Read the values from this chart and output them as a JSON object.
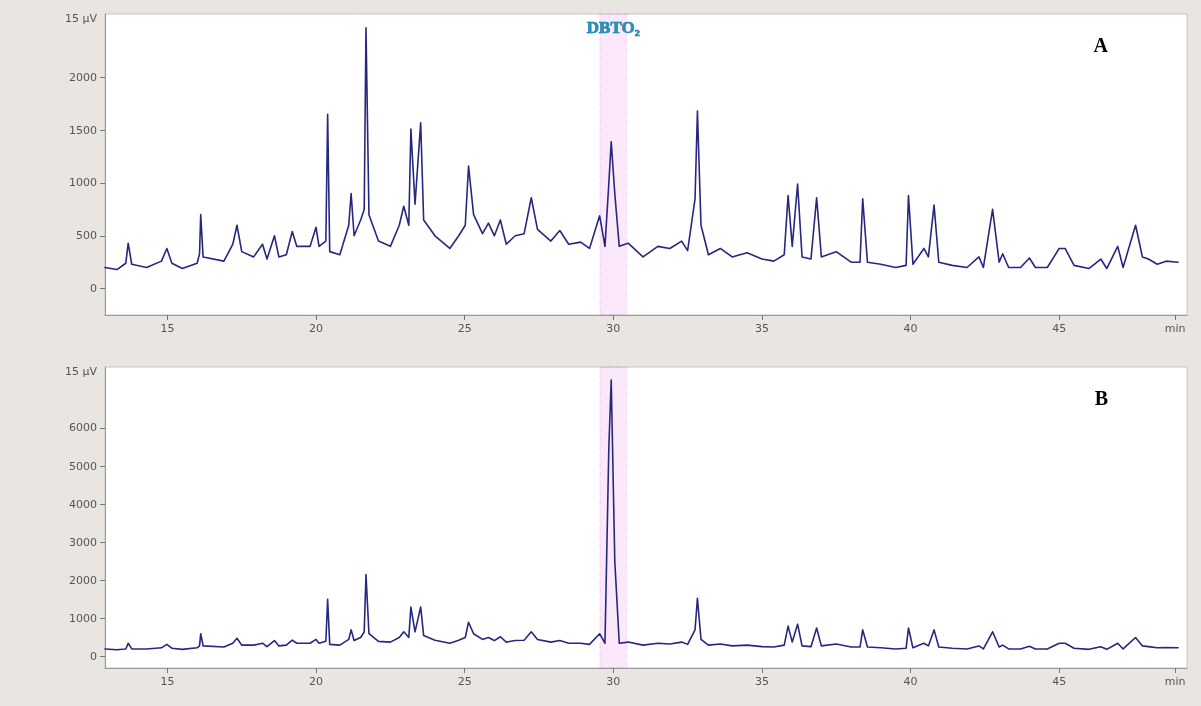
{
  "chart_data": [
    {
      "type": "line",
      "title": "A",
      "x": [
        12.9,
        13.3,
        13.6,
        13.68,
        13.8,
        14.3,
        14.8,
        14.98,
        15.15,
        15.5,
        16.0,
        16.08,
        16.12,
        16.2,
        16.9,
        17.2,
        17.34,
        17.5,
        17.9,
        18.2,
        18.35,
        18.6,
        18.75,
        19.0,
        19.2,
        19.35,
        19.8,
        20.0,
        20.1,
        20.33,
        20.39,
        20.46,
        20.8,
        21.1,
        21.18,
        21.28,
        21.5,
        21.62,
        21.68,
        21.78,
        22.1,
        22.5,
        22.8,
        22.95,
        23.12,
        23.19,
        23.33,
        23.52,
        23.62,
        24.0,
        24.5,
        24.8,
        25.02,
        25.13,
        25.3,
        25.6,
        25.8,
        26.0,
        26.2,
        26.4,
        26.7,
        27.0,
        27.24,
        27.45,
        27.9,
        28.2,
        28.5,
        28.9,
        29.2,
        29.54,
        29.72,
        29.85,
        29.93,
        30.05,
        30.2,
        30.5,
        31.0,
        31.5,
        31.9,
        32.3,
        32.5,
        32.75,
        32.83,
        32.95,
        33.2,
        33.6,
        34.0,
        34.5,
        35.0,
        35.4,
        35.75,
        35.88,
        36.02,
        36.2,
        36.35,
        36.65,
        36.84,
        37.0,
        37.5,
        38.0,
        38.3,
        38.39,
        38.55,
        39.0,
        39.5,
        39.85,
        39.93,
        40.08,
        40.45,
        40.6,
        40.79,
        40.95,
        41.4,
        41.9,
        42.3,
        42.45,
        42.76,
        42.98,
        43.1,
        43.3,
        43.7,
        44.0,
        44.2,
        44.6,
        45.0,
        45.2,
        45.5,
        46.0,
        46.4,
        46.6,
        46.97,
        47.15,
        47.57,
        47.8,
        48.0,
        48.3,
        48.6,
        49.0
      ],
      "series": [
        {
          "color": "#27277f",
          "values": [
            200,
            180,
            240,
            430,
            230,
            200,
            260,
            380,
            240,
            190,
            240,
            330,
            700,
            300,
            260,
            420,
            600,
            350,
            300,
            420,
            280,
            500,
            300,
            320,
            540,
            400,
            400,
            580,
            400,
            450,
            1650,
            350,
            320,
            600,
            900,
            500,
            650,
            750,
            2470,
            700,
            450,
            400,
            600,
            780,
            600,
            1510,
            800,
            1570,
            650,
            500,
            380,
            500,
            600,
            1160,
            700,
            520,
            620,
            500,
            650,
            420,
            500,
            520,
            860,
            560,
            450,
            550,
            420,
            440,
            380,
            690,
            400,
            1000,
            1390,
            900,
            400,
            430,
            300,
            400,
            380,
            450,
            360,
            850,
            1680,
            600,
            320,
            380,
            300,
            340,
            280,
            260,
            320,
            880,
            400,
            990,
            300,
            280,
            860,
            300,
            350,
            250,
            250,
            850,
            250,
            230,
            200,
            220,
            880,
            230,
            380,
            300,
            790,
            250,
            220,
            200,
            300,
            200,
            750,
            250,
            330,
            200,
            200,
            290,
            200,
            200,
            380,
            380,
            220,
            190,
            280,
            190,
            400,
            200,
            600,
            300,
            280,
            230,
            260,
            250
          ]
        }
      ],
      "xlim": [
        12.9,
        49.3
      ],
      "xticks": [
        15,
        20,
        25,
        30,
        35,
        40,
        45,
        {
          "value": 48.9,
          "label": "min"
        }
      ],
      "ylabel": "15 µV",
      "ylim": [
        -250,
        2600
      ],
      "yticks": [
        0,
        500,
        1000,
        1500,
        2000
      ],
      "bands": [
        {
          "axis": "x",
          "from": 29.55,
          "to": 30.45,
          "label": "DBTO₂",
          "color": "#e040e0"
        }
      ],
      "grid": false,
      "marker": "none",
      "line_style": "solid"
    },
    {
      "type": "line",
      "title": "B",
      "x": [
        12.9,
        13.3,
        13.6,
        13.68,
        13.8,
        14.3,
        14.8,
        14.98,
        15.15,
        15.5,
        16.0,
        16.08,
        16.12,
        16.2,
        16.9,
        17.2,
        17.34,
        17.5,
        17.9,
        18.2,
        18.35,
        18.6,
        18.75,
        19.0,
        19.2,
        19.35,
        19.8,
        20.0,
        20.1,
        20.33,
        20.39,
        20.46,
        20.8,
        21.1,
        21.18,
        21.28,
        21.5,
        21.62,
        21.68,
        21.78,
        22.1,
        22.5,
        22.8,
        22.95,
        23.12,
        23.19,
        23.33,
        23.52,
        23.62,
        24.0,
        24.5,
        24.8,
        25.02,
        25.13,
        25.3,
        25.6,
        25.8,
        26.0,
        26.2,
        26.4,
        26.7,
        27.0,
        27.24,
        27.45,
        27.9,
        28.2,
        28.5,
        28.9,
        29.2,
        29.54,
        29.72,
        29.85,
        29.93,
        30.05,
        30.2,
        30.5,
        31.0,
        31.5,
        31.9,
        32.3,
        32.5,
        32.75,
        32.83,
        32.95,
        33.2,
        33.6,
        34.0,
        34.5,
        35.0,
        35.4,
        35.75,
        35.88,
        36.02,
        36.2,
        36.35,
        36.65,
        36.84,
        37.0,
        37.5,
        38.0,
        38.3,
        38.39,
        38.55,
        39.0,
        39.5,
        39.85,
        39.93,
        40.08,
        40.45,
        40.6,
        40.79,
        40.95,
        41.4,
        41.9,
        42.3,
        42.45,
        42.76,
        42.98,
        43.1,
        43.3,
        43.7,
        44.0,
        44.2,
        44.6,
        45.0,
        45.2,
        45.5,
        46.0,
        46.4,
        46.6,
        46.97,
        47.15,
        47.57,
        47.8,
        48.0,
        48.3,
        48.6,
        49.0
      ],
      "series": [
        {
          "color": "#27277f",
          "values": [
            200,
            180,
            200,
            350,
            200,
            200,
            230,
            320,
            220,
            190,
            230,
            280,
            600,
            280,
            250,
            350,
            480,
            300,
            300,
            350,
            260,
            420,
            280,
            300,
            430,
            350,
            350,
            450,
            350,
            400,
            1500,
            320,
            300,
            450,
            700,
            420,
            500,
            650,
            2150,
            600,
            400,
            380,
            500,
            650,
            500,
            1300,
            650,
            1300,
            550,
            430,
            350,
            430,
            500,
            900,
            600,
            450,
            500,
            420,
            520,
            380,
            420,
            430,
            650,
            450,
            380,
            420,
            350,
            350,
            320,
            600,
            350,
            5500,
            7260,
            2500,
            350,
            380,
            300,
            350,
            330,
            380,
            320,
            700,
            1530,
            450,
            300,
            330,
            280,
            300,
            260,
            250,
            300,
            800,
            380,
            850,
            280,
            260,
            750,
            280,
            330,
            250,
            250,
            700,
            250,
            230,
            200,
            220,
            750,
            230,
            350,
            280,
            700,
            250,
            220,
            200,
            280,
            200,
            650,
            250,
            300,
            200,
            200,
            270,
            200,
            200,
            350,
            350,
            220,
            190,
            260,
            190,
            350,
            200,
            500,
            280,
            260,
            230,
            240,
            230
          ]
        }
      ],
      "xlim": [
        12.9,
        49.3
      ],
      "xticks": [
        15,
        20,
        25,
        30,
        35,
        40,
        45,
        {
          "value": 48.9,
          "label": "min"
        }
      ],
      "ylabel": "15 µV",
      "ylim": [
        -300,
        7600
      ],
      "yticks": [
        0,
        1000,
        2000,
        3000,
        4000,
        5000,
        6000
      ],
      "bands": [
        {
          "axis": "x",
          "from": 29.55,
          "to": 30.45,
          "color": "#e040e0"
        }
      ],
      "grid": false,
      "marker": "none",
      "line_style": "solid"
    }
  ]
}
